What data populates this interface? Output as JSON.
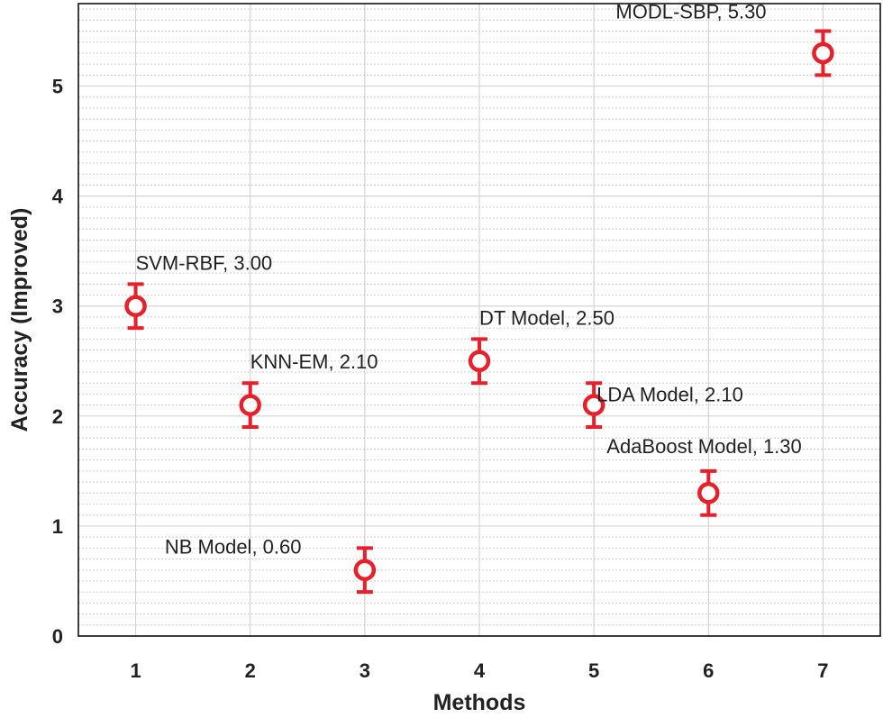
{
  "chart_data": {
    "type": "scatter",
    "title": "",
    "xlabel": "Methods",
    "ylabel": "Accuracy (Improved)",
    "xlim": [
      0.5,
      7.5
    ],
    "ylim": [
      0,
      5.75
    ],
    "x_ticks": [
      1,
      2,
      3,
      4,
      5,
      6,
      7
    ],
    "y_ticks": [
      0,
      1,
      2,
      3,
      4,
      5
    ],
    "x_tick_labels": [
      "1",
      "2",
      "3",
      "4",
      "5",
      "6",
      "7"
    ],
    "y_tick_labels": [
      "0",
      "1",
      "2",
      "3",
      "4",
      "5"
    ],
    "grid": true,
    "minor_grid_y": true,
    "marker_color": "#e8202a",
    "series": [
      {
        "points": [
          {
            "x": 1,
            "y": 3.0,
            "err": 0.2,
            "label": "SVM-RBF, 3.00",
            "label_pos": "above-right"
          },
          {
            "x": 2,
            "y": 2.1,
            "err": 0.2,
            "label": "KNN-EM, 2.10",
            "label_pos": "above-right"
          },
          {
            "x": 3,
            "y": 0.6,
            "err": 0.2,
            "label": "NB Model, 0.60",
            "label_pos": "left"
          },
          {
            "x": 4,
            "y": 2.5,
            "err": 0.2,
            "label": "DT Model, 2.50",
            "label_pos": "above-right"
          },
          {
            "x": 5,
            "y": 2.1,
            "err": 0.2,
            "label": "LDA Model, 2.10",
            "label_pos": "right"
          },
          {
            "x": 6,
            "y": 1.3,
            "err": 0.2,
            "label": "AdaBoost Model, 1.30",
            "label_pos": "above"
          },
          {
            "x": 7,
            "y": 5.3,
            "err": 0.2,
            "label": "MODL-SBP, 5.30",
            "label_pos": "above-left"
          }
        ]
      }
    ]
  }
}
